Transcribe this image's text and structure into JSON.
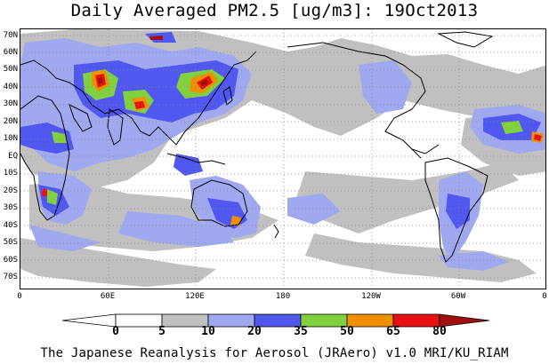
{
  "title": "Daily Averaged PM2.5 [ug/m3]: 19Oct2013",
  "footer": "The Japanese Reanalysis for Aerosol (JRAero) v1.0 MRI/KU_RIAM",
  "map": {
    "projection": "equirectangular",
    "lon_range": [
      0,
      360
    ],
    "lat_range": [
      -75,
      75
    ],
    "grid": "dotted",
    "lat_labels": [
      "70N",
      "60N",
      "50N",
      "40N",
      "30N",
      "20N",
      "10N",
      "EQ",
      "10S",
      "20S",
      "30S",
      "40S",
      "50S",
      "60S",
      "70S"
    ],
    "lon_labels": [
      "0",
      "60E",
      "120E",
      "180",
      "120W",
      "60W",
      "0"
    ]
  },
  "colorbar": {
    "ticks": [
      "0",
      "5",
      "10",
      "20",
      "35",
      "50",
      "65",
      "80"
    ],
    "bins": [
      {
        "range": "<0",
        "color": "#ffffff"
      },
      {
        "range": "0-5",
        "color": "#ffffff"
      },
      {
        "range": "5-10",
        "color": "#c0c0c0"
      },
      {
        "range": "10-20",
        "color": "#a0a8f0"
      },
      {
        "range": "20-35",
        "color": "#5058f0"
      },
      {
        "range": "35-50",
        "color": "#80d040"
      },
      {
        "range": "50-65",
        "color": "#f09000"
      },
      {
        "range": "65-80",
        "color": "#e81010"
      },
      {
        "range": ">80",
        "color": "#a01010"
      }
    ]
  }
}
